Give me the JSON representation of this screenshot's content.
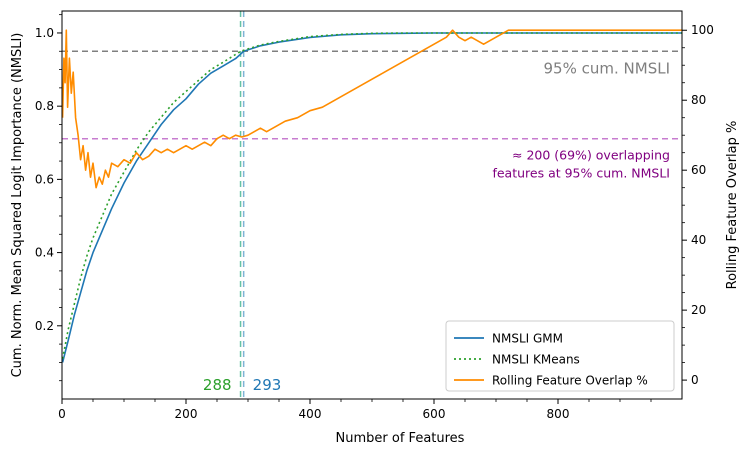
{
  "chart_data": {
    "type": "line",
    "xlabel": "Number of Features",
    "ylabel_left": "Cum. Norm. Mean Squared Logit Importance (NMSLI)",
    "ylabel_right": "Rolling Feature Overlap %",
    "xlim": [
      0,
      1000
    ],
    "ylim_left": [
      0,
      1.06
    ],
    "ylim_right": [
      -5.4,
      105.5
    ],
    "xticks": [
      0,
      200,
      400,
      600,
      800
    ],
    "yticks_left": [
      0.2,
      0.4,
      0.6,
      0.8,
      1.0
    ],
    "yticks_right": [
      0,
      20,
      40,
      60,
      80,
      100
    ],
    "series": [
      {
        "name": "NMSLI GMM",
        "axis": "left",
        "color": "#1f77b4",
        "style": "solid",
        "x": [
          1,
          10,
          20,
          30,
          40,
          50,
          60,
          80,
          100,
          120,
          140,
          160,
          180,
          200,
          220,
          240,
          260,
          280,
          293,
          320,
          350,
          400,
          450,
          500,
          550,
          600,
          650,
          700,
          750,
          800,
          900,
          1000
        ],
        "y": [
          0.1,
          0.16,
          0.23,
          0.29,
          0.35,
          0.4,
          0.44,
          0.52,
          0.59,
          0.65,
          0.7,
          0.75,
          0.79,
          0.82,
          0.86,
          0.89,
          0.91,
          0.93,
          0.95,
          0.965,
          0.975,
          0.988,
          0.995,
          0.998,
          0.999,
          1.0,
          1.0,
          1.0,
          1.0,
          1.0,
          1.0,
          1.0
        ]
      },
      {
        "name": "NMSLI KMeans",
        "axis": "left",
        "color": "#2ca02c",
        "style": "dotted",
        "x": [
          1,
          10,
          20,
          30,
          40,
          50,
          60,
          80,
          100,
          120,
          140,
          160,
          180,
          200,
          220,
          240,
          260,
          288,
          320,
          350,
          400,
          450,
          500,
          550,
          600,
          650,
          700,
          800,
          900,
          1000
        ],
        "y": [
          0.11,
          0.19,
          0.26,
          0.33,
          0.39,
          0.44,
          0.48,
          0.56,
          0.62,
          0.68,
          0.73,
          0.77,
          0.81,
          0.84,
          0.87,
          0.9,
          0.92,
          0.95,
          0.967,
          0.977,
          0.99,
          0.996,
          0.999,
          1.0,
          1.0,
          1.0,
          1.0,
          1.0,
          1.0,
          1.0
        ]
      },
      {
        "name": "Rolling Feature Overlap %",
        "axis": "right",
        "color": "#ff8c00",
        "style": "solid",
        "x": [
          1,
          3,
          5,
          7,
          9,
          12,
          15,
          18,
          22,
          26,
          30,
          34,
          38,
          42,
          46,
          50,
          55,
          60,
          65,
          70,
          75,
          80,
          90,
          100,
          110,
          120,
          130,
          140,
          150,
          160,
          170,
          180,
          190,
          200,
          210,
          220,
          230,
          240,
          250,
          260,
          270,
          280,
          290,
          300,
          310,
          320,
          330,
          340,
          350,
          360,
          380,
          400,
          420,
          440,
          460,
          480,
          500,
          520,
          540,
          560,
          580,
          600,
          610,
          620,
          630,
          640,
          650,
          660,
          670,
          680,
          690,
          700,
          710,
          720,
          740,
          760,
          800,
          850,
          900,
          950,
          1000
        ],
        "y": [
          75,
          92,
          85,
          100,
          78,
          92,
          82,
          88,
          75,
          70,
          63,
          67,
          60,
          65,
          58,
          62,
          55,
          58,
          56,
          60,
          58,
          62,
          61,
          63,
          62,
          65,
          63,
          64,
          66,
          65,
          66,
          65,
          66,
          67,
          66,
          67,
          68,
          67,
          69,
          70,
          69,
          70,
          69.5,
          70,
          71,
          72,
          71,
          72,
          73,
          74,
          75,
          77,
          78,
          80,
          82,
          84,
          86,
          88,
          90,
          92,
          94,
          96,
          97,
          98,
          100,
          98,
          97,
          98,
          97,
          96,
          97,
          98,
          99,
          100,
          100,
          100,
          100,
          100,
          100,
          100,
          100
        ]
      }
    ],
    "hlines": [
      {
        "axis": "left",
        "y": 0.95,
        "color": "#7f7f7f",
        "style": "dashed",
        "label": "95% cum. NMSLI"
      },
      {
        "axis": "right",
        "y": 69,
        "color": "#c77ccf",
        "style": "dashed",
        "label_lines": [
          "≈ 200 (69%) overlapping",
          "features at 95% cum. NMSLI"
        ],
        "label_color": "#800080"
      }
    ],
    "vlines": [
      {
        "x": 288,
        "color": "#66c2a5",
        "label": "288",
        "label_color": "#2ca02c"
      },
      {
        "x": 293,
        "color": "#7fb3d5",
        "label": "293",
        "label_color": "#1f77b4"
      }
    ],
    "legend": {
      "position": "bottom-right"
    },
    "grid": false
  }
}
